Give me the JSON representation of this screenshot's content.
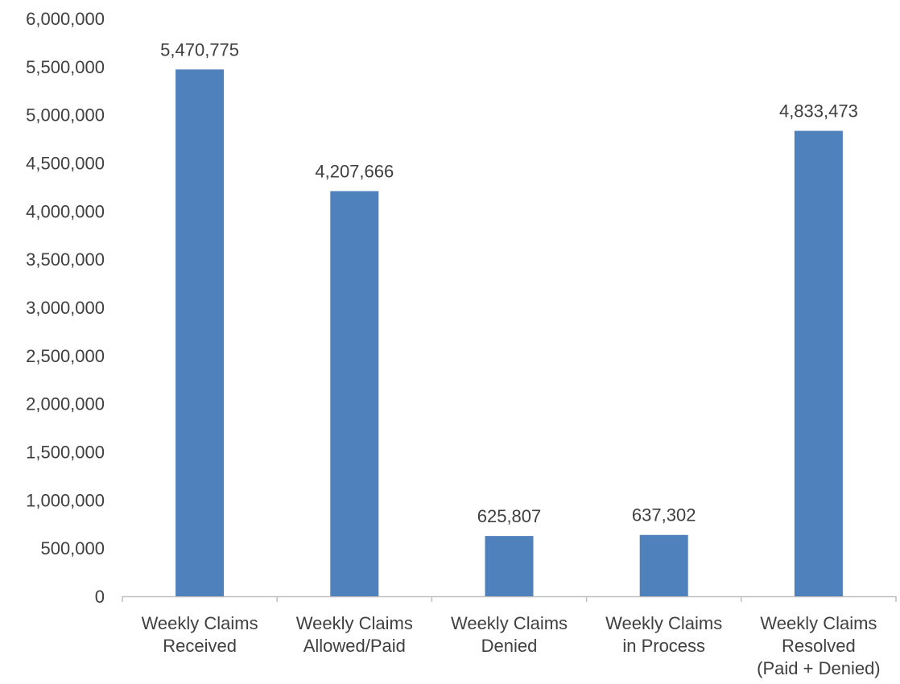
{
  "chart_data": {
    "type": "bar",
    "categories": [
      [
        "Weekly Claims",
        "Received"
      ],
      [
        "Weekly Claims",
        "Allowed/Paid"
      ],
      [
        "Weekly Claims",
        "Denied"
      ],
      [
        "Weekly Claims",
        "in Process"
      ],
      [
        "Weekly Claims",
        "Resolved",
        "(Paid + Denied)"
      ]
    ],
    "values": [
      5470775,
      4207666,
      625807,
      637302,
      4833473
    ],
    "data_labels": [
      "5,470,775",
      "4,207,666",
      "625,807",
      "637,302",
      "4,833,473"
    ],
    "ylim": [
      0,
      6000000
    ],
    "yticks": [
      0,
      500000,
      1000000,
      1500000,
      2000000,
      2500000,
      3000000,
      3500000,
      4000000,
      4500000,
      5000000,
      5500000,
      6000000
    ],
    "ytick_labels": [
      "0",
      "500,000",
      "1,000,000",
      "1,500,000",
      "2,000,000",
      "2,500,000",
      "3,000,000",
      "3,500,000",
      "4,000,000",
      "4,500,000",
      "5,000,000",
      "5,500,000",
      "6,000,000"
    ],
    "title": "",
    "xlabel": "",
    "ylabel": "",
    "grid": false,
    "legend": "none",
    "colors": {
      "bar": "#4f81bd",
      "text": "#404040",
      "axis": "#bfbfbf"
    }
  }
}
